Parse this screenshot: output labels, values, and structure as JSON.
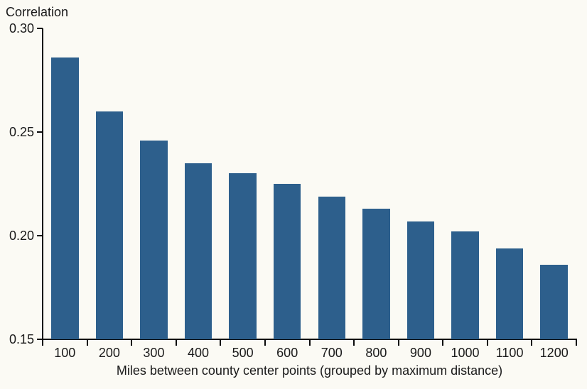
{
  "chart": {
    "background_color": "#FBFAF4",
    "bar_color": "#2D5F8C",
    "axis_color": "#0A0A0A",
    "text_color": "#1A1A1A"
  },
  "chart_data": {
    "type": "bar",
    "ylabel": "Correlation",
    "xlabel": "Miles between county center points (grouped by maximum distance)",
    "categories": [
      "100",
      "200",
      "300",
      "400",
      "500",
      "600",
      "700",
      "800",
      "900",
      "1000",
      "1100",
      "1200"
    ],
    "values": [
      0.286,
      0.26,
      0.246,
      0.235,
      0.23,
      0.225,
      0.219,
      0.213,
      0.207,
      0.202,
      0.194,
      0.186
    ],
    "ylim": [
      0.15,
      0.3
    ],
    "yticks": [
      0.3,
      0.25,
      0.2,
      0.15
    ],
    "grid": false,
    "legend": "none",
    "tick_style": "boundary-ticks-between-groups"
  }
}
